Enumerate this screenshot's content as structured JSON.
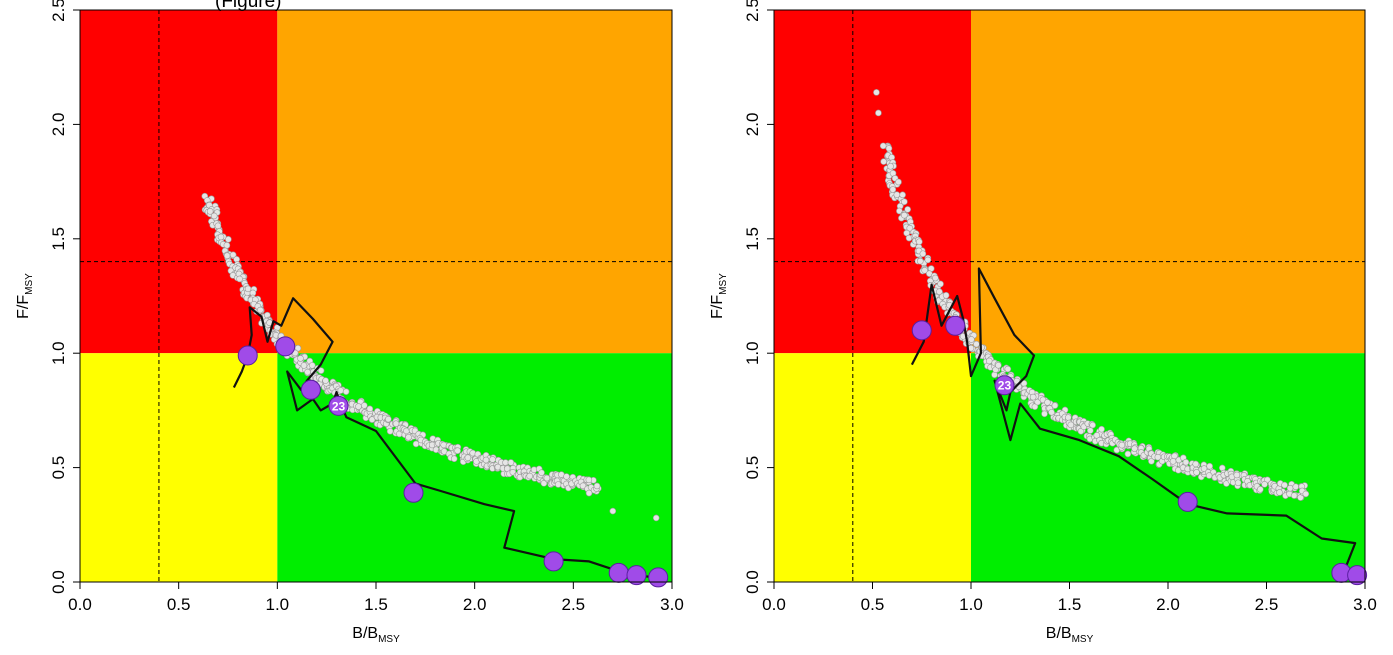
{
  "caption_fragment": "(Figure)",
  "colors": {
    "red_zone": "#ff0000",
    "orange_zone": "#ffa500",
    "yellow_zone": "#ffff00",
    "green_zone": "#00ee00",
    "cloud_point": "#e6e6e6",
    "trajectory": "#111111",
    "marker": "#a04be8",
    "marker_text": "#ffffff"
  },
  "chart_data": [
    {
      "type": "scatter",
      "panel": "left",
      "xlabel": {
        "main": "B/B",
        "sub": "MSY"
      },
      "ylabel": {
        "main": "F/F",
        "sub": "MSY"
      },
      "xlim": [
        0,
        3
      ],
      "ylim": [
        0,
        2.5
      ],
      "x_ticks": [
        "0.0",
        "0.5",
        "1.0",
        "1.5",
        "2.0",
        "2.5",
        "3.0"
      ],
      "y_ticks": [
        "0.0",
        "0.5",
        "1.0",
        "1.5",
        "2.0",
        "2.5"
      ],
      "zones": {
        "b_split": 1.0,
        "f_split": 1.0
      },
      "reference_lines": {
        "b_lim": 0.4,
        "f_lim": 1.4
      },
      "cloud": {
        "b_start": 0.65,
        "b_end": 2.62,
        "k": 1.08,
        "extra": [
          [
            2.7,
            0.31
          ],
          [
            2.92,
            0.28
          ]
        ]
      },
      "trajectory": [
        [
          0.78,
          0.85
        ],
        [
          0.82,
          0.92
        ],
        [
          0.85,
          0.99
        ],
        [
          0.87,
          1.08
        ],
        [
          0.86,
          1.2
        ],
        [
          0.92,
          1.16
        ],
        [
          0.95,
          1.05
        ],
        [
          0.98,
          1.14
        ],
        [
          1.02,
          1.12
        ],
        [
          1.08,
          1.24
        ],
        [
          1.18,
          1.15
        ],
        [
          1.28,
          1.05
        ],
        [
          1.22,
          0.95
        ],
        [
          1.15,
          0.88
        ],
        [
          1.12,
          0.84
        ],
        [
          1.05,
          0.92
        ],
        [
          1.1,
          0.75
        ],
        [
          1.18,
          0.8
        ],
        [
          1.22,
          0.75
        ],
        [
          1.28,
          0.78
        ],
        [
          1.3,
          0.83
        ],
        [
          1.32,
          0.78
        ],
        [
          1.35,
          0.72
        ],
        [
          1.5,
          0.66
        ],
        [
          1.7,
          0.43
        ],
        [
          1.82,
          0.4
        ],
        [
          2.05,
          0.34
        ],
        [
          2.2,
          0.31
        ],
        [
          2.15,
          0.15
        ],
        [
          2.4,
          0.1
        ],
        [
          2.58,
          0.09
        ],
        [
          2.72,
          0.05
        ],
        [
          2.8,
          0.03
        ],
        [
          2.92,
          0.02
        ]
      ],
      "markers": [
        {
          "b": 0.85,
          "f": 0.99,
          "label": ""
        },
        {
          "b": 1.04,
          "f": 1.03,
          "label": ""
        },
        {
          "b": 1.17,
          "f": 0.84,
          "label": ""
        },
        {
          "b": 1.31,
          "f": 0.77,
          "label": "23"
        },
        {
          "b": 1.69,
          "f": 0.39,
          "label": ""
        },
        {
          "b": 2.4,
          "f": 0.09,
          "label": ""
        },
        {
          "b": 2.73,
          "f": 0.04,
          "label": ""
        },
        {
          "b": 2.82,
          "f": 0.03,
          "label": ""
        },
        {
          "b": 2.93,
          "f": 0.02,
          "label": ""
        }
      ]
    },
    {
      "type": "scatter",
      "panel": "right",
      "xlabel": {
        "main": "B/B",
        "sub": "MSY"
      },
      "ylabel": {
        "main": "F/F",
        "sub": "MSY"
      },
      "xlim": [
        0,
        3
      ],
      "ylim": [
        0,
        2.5
      ],
      "x_ticks": [
        "0.0",
        "0.5",
        "1.0",
        "1.5",
        "2.0",
        "2.5",
        "3.0"
      ],
      "y_ticks": [
        "0.0",
        "0.5",
        "1.0",
        "1.5",
        "2.0",
        "2.5"
      ],
      "zones": {
        "b_split": 1.0,
        "f_split": 1.0
      },
      "reference_lines": {
        "b_lim": 0.4,
        "f_lim": 1.4
      },
      "cloud": {
        "b_start": 0.56,
        "b_end": 2.7,
        "k": 1.06,
        "extra": [
          [
            0.52,
            2.14
          ],
          [
            0.53,
            2.05
          ]
        ]
      },
      "trajectory": [
        [
          0.7,
          0.95
        ],
        [
          0.76,
          1.05
        ],
        [
          0.8,
          1.3
        ],
        [
          0.85,
          1.12
        ],
        [
          0.93,
          1.25
        ],
        [
          0.96,
          1.15
        ],
        [
          0.98,
          1.05
        ],
        [
          1.0,
          0.9
        ],
        [
          1.05,
          1.0
        ],
        [
          1.04,
          1.37
        ],
        [
          1.12,
          1.24
        ],
        [
          1.22,
          1.08
        ],
        [
          1.32,
          0.99
        ],
        [
          1.28,
          0.9
        ],
        [
          1.2,
          0.83
        ],
        [
          1.18,
          0.75
        ],
        [
          1.12,
          0.88
        ],
        [
          1.2,
          0.62
        ],
        [
          1.25,
          0.78
        ],
        [
          1.35,
          0.67
        ],
        [
          1.55,
          0.62
        ],
        [
          1.75,
          0.55
        ],
        [
          1.92,
          0.45
        ],
        [
          2.1,
          0.34
        ],
        [
          2.3,
          0.3
        ],
        [
          2.6,
          0.29
        ],
        [
          2.78,
          0.19
        ],
        [
          2.95,
          0.17
        ],
        [
          2.9,
          0.06
        ],
        [
          2.97,
          0.03
        ]
      ],
      "markers": [
        {
          "b": 0.75,
          "f": 1.1,
          "label": ""
        },
        {
          "b": 0.92,
          "f": 1.12,
          "label": ""
        },
        {
          "b": 1.17,
          "f": 0.86,
          "label": "23"
        },
        {
          "b": 2.1,
          "f": 0.35,
          "label": ""
        },
        {
          "b": 2.88,
          "f": 0.04,
          "label": ""
        },
        {
          "b": 2.96,
          "f": 0.03,
          "label": ""
        }
      ]
    }
  ]
}
